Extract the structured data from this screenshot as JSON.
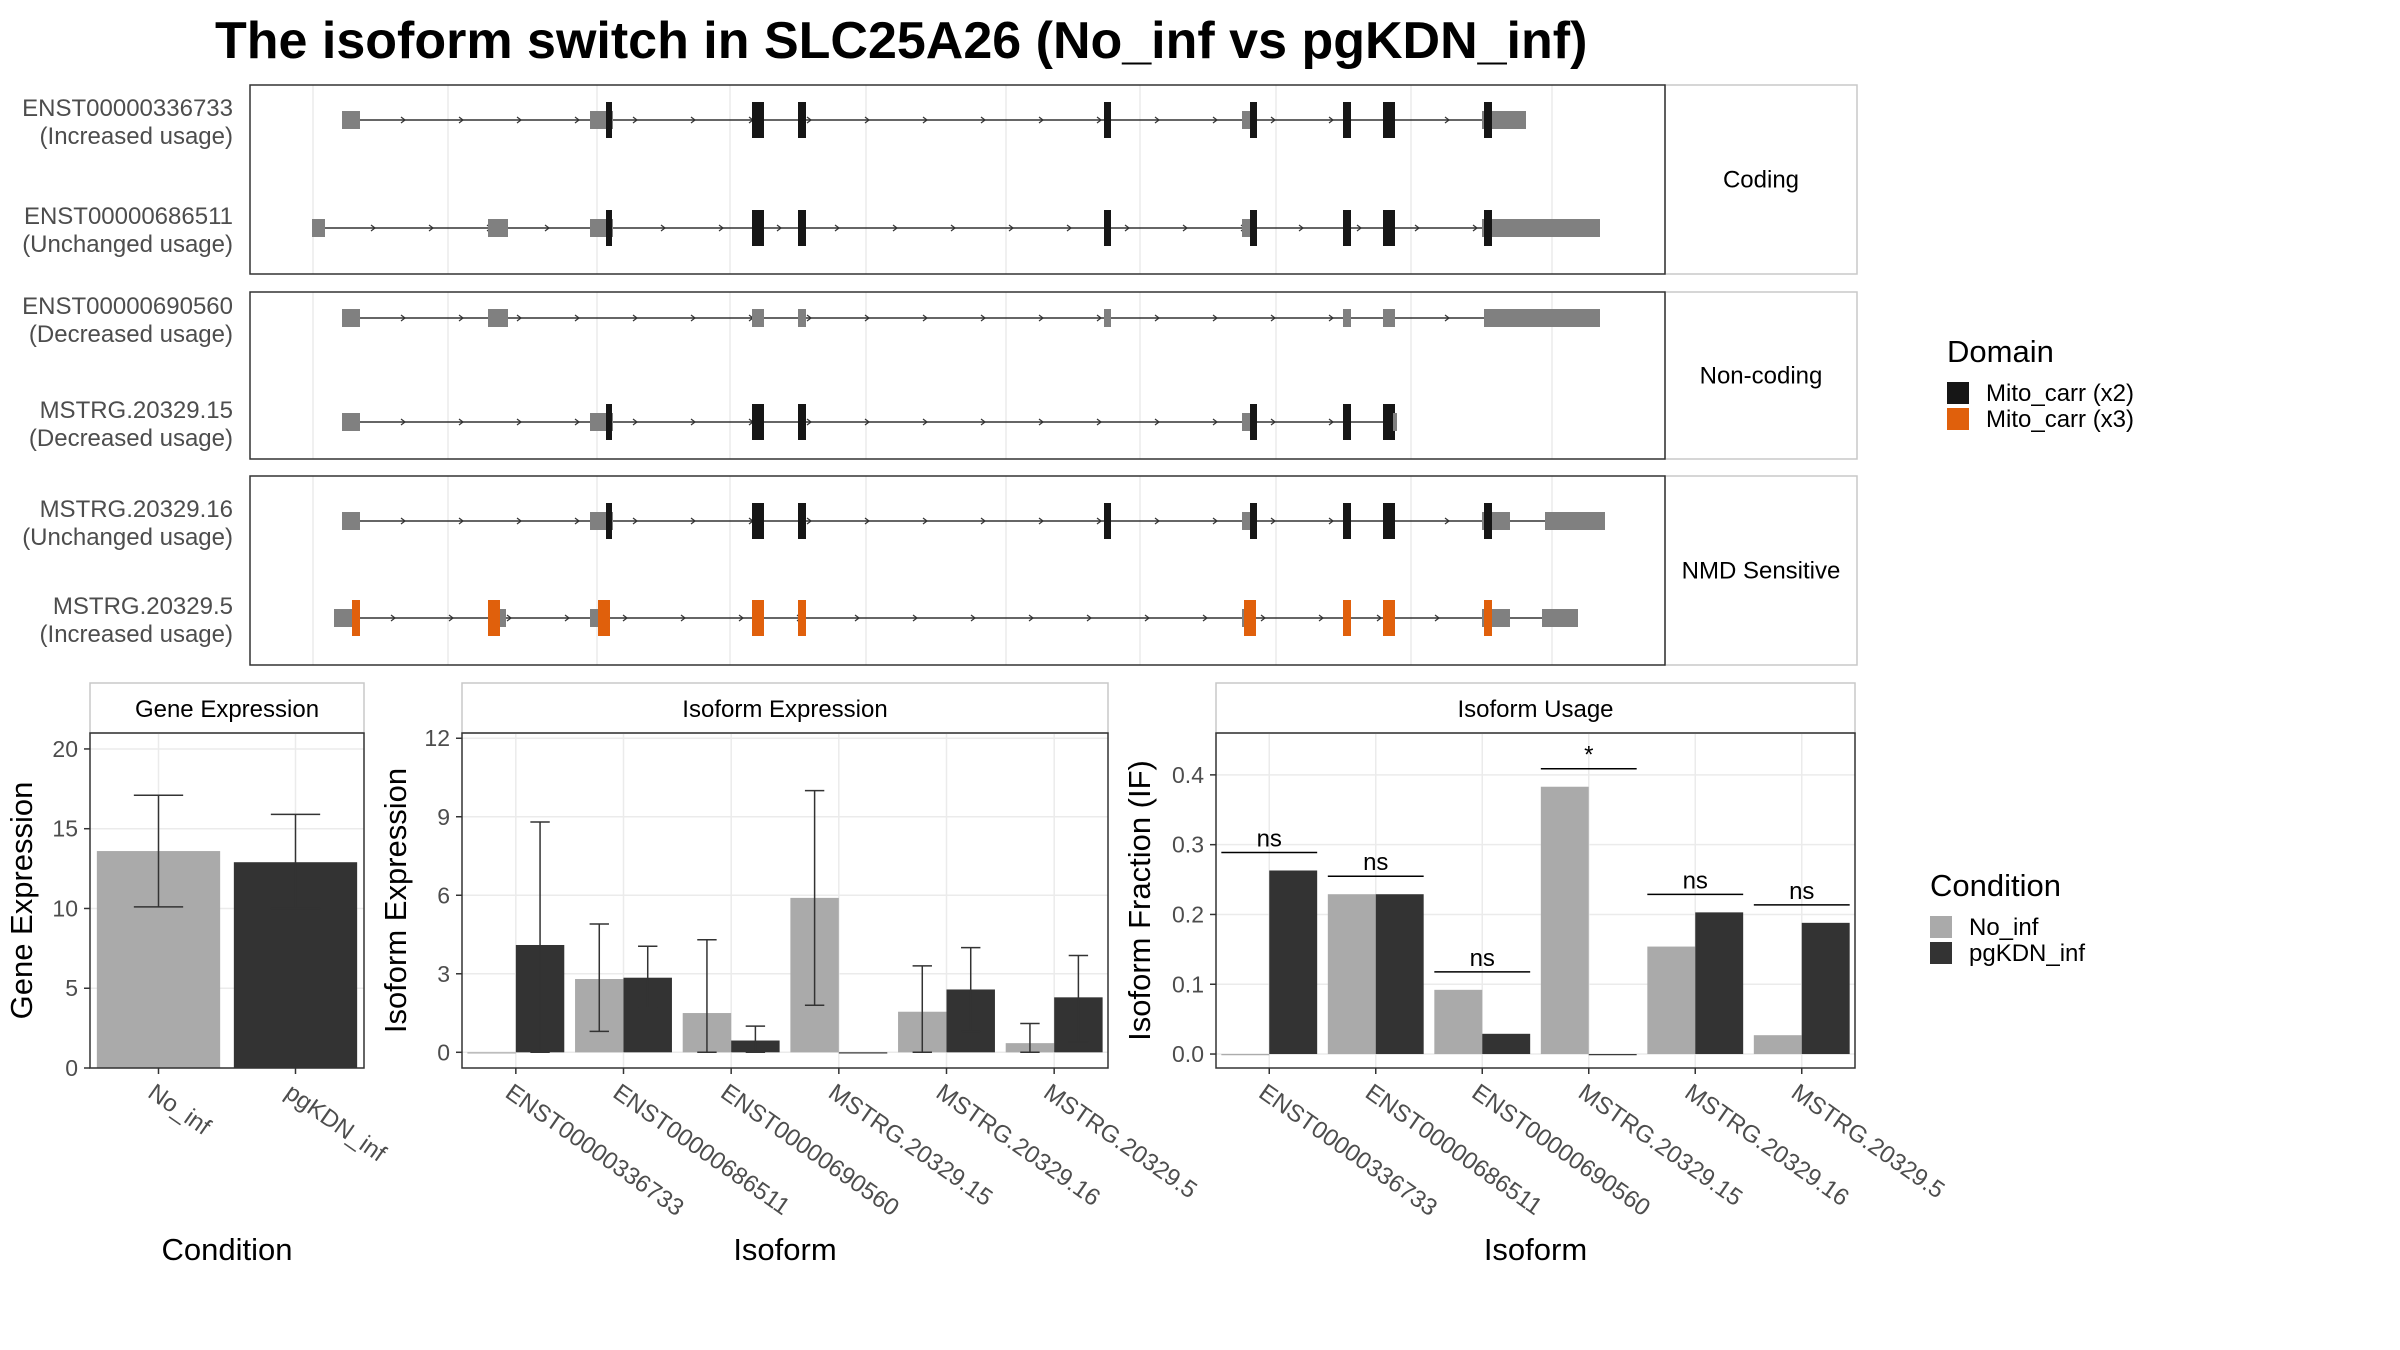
{
  "title": "The isoform switch in SLC25A26 (No_inf vs pgKDN_inf)",
  "colors": {
    "no_inf": "#AAAAAA",
    "pgkdn_inf": "#333333",
    "exon": "#808080",
    "mito_x2": "#161616",
    "mito_x3": "#E0600C"
  },
  "structure": {
    "isoforms": [
      {
        "id": "ENST00000336733",
        "usage": "(Increased usage)",
        "group": 0
      },
      {
        "id": "ENST00000686511",
        "usage": "(Unchanged usage)",
        "group": 0
      },
      {
        "id": "ENST00000690560",
        "usage": "(Decreased usage)",
        "group": 1
      },
      {
        "id": "MSTRG.20329.15",
        "usage": "(Decreased usage)",
        "group": 1
      },
      {
        "id": "MSTRG.20329.16",
        "usage": "(Unchanged usage)",
        "group": 2
      },
      {
        "id": "MSTRG.20329.5",
        "usage": "(Increased usage)",
        "group": 2
      }
    ],
    "groups": [
      "Coding",
      "Non-coding",
      "NMD Sensitive"
    ]
  },
  "domain_legend": {
    "title": "Domain",
    "items": [
      {
        "label": "Mito_carr (x2)",
        "color": "#161616"
      },
      {
        "label": "Mito_carr (x3)",
        "color": "#E0600C"
      }
    ]
  },
  "condition_legend": {
    "title": "Condition",
    "items": [
      {
        "label": "No_inf",
        "color": "#AAAAAA"
      },
      {
        "label": "pgKDN_inf",
        "color": "#333333"
      }
    ]
  },
  "chart_data": [
    {
      "type": "bar",
      "strip": "Gene Expression",
      "xlabel": "Condition",
      "ylabel": "Gene Expression",
      "categories": [
        "No_inf",
        "pgKDN_inf"
      ],
      "values": [
        13.6,
        12.9
      ],
      "error": [
        [
          10.1,
          17.1
        ],
        [
          10.0,
          15.9
        ]
      ],
      "ylim": [
        0,
        21
      ],
      "yticks": [
        0,
        5,
        10,
        15,
        20
      ]
    },
    {
      "type": "bar",
      "strip": "Isoform Expression",
      "xlabel": "Isoform",
      "ylabel": "Isoform Expression",
      "categories": [
        "ENST00000336733",
        "ENST00000686511",
        "ENST00000690560",
        "MSTRG.20329.15",
        "MSTRG.20329.16",
        "MSTRG.20329.5"
      ],
      "series": [
        {
          "name": "No_inf",
          "values": [
            0.0,
            2.8,
            1.5,
            5.9,
            1.55,
            0.35
          ],
          "error": [
            [
              0.0,
              0.0
            ],
            [
              0.8,
              4.9
            ],
            [
              0.0,
              4.3
            ],
            [
              1.8,
              10.0
            ],
            [
              0.0,
              3.3
            ],
            [
              0.0,
              1.1
            ]
          ]
        },
        {
          "name": "pgKDN_inf",
          "values": [
            4.1,
            2.85,
            0.45,
            0.0,
            2.4,
            2.1
          ],
          "error": [
            [
              0.0,
              8.8
            ],
            [
              1.7,
              4.05
            ],
            [
              0.0,
              1.0
            ],
            [
              0.0,
              0.0
            ],
            [
              0.8,
              4.0
            ],
            [
              0.4,
              3.7
            ]
          ]
        }
      ],
      "ylim": [
        -0.6,
        12.2
      ],
      "yticks": [
        0,
        3,
        6,
        9,
        12
      ]
    },
    {
      "type": "bar",
      "strip": "Isoform Usage",
      "xlabel": "Isoform",
      "ylabel": "Isoform Fraction (IF)",
      "categories": [
        "ENST00000336733",
        "ENST00000686511",
        "ENST00000690560",
        "MSTRG.20329.15",
        "MSTRG.20329.16",
        "MSTRG.20329.5"
      ],
      "series": [
        {
          "name": "No_inf",
          "values": [
            0.0,
            0.229,
            0.092,
            0.383,
            0.154,
            0.027
          ]
        },
        {
          "name": "pgKDN_inf",
          "values": [
            0.263,
            0.229,
            0.029,
            0.0,
            0.203,
            0.188
          ]
        }
      ],
      "significance": [
        "ns",
        "ns",
        "ns",
        "*",
        "ns",
        "ns"
      ],
      "ylim": [
        -0.02,
        0.46
      ],
      "yticks": [
        0.0,
        0.1,
        0.2,
        0.3,
        0.4
      ]
    }
  ]
}
